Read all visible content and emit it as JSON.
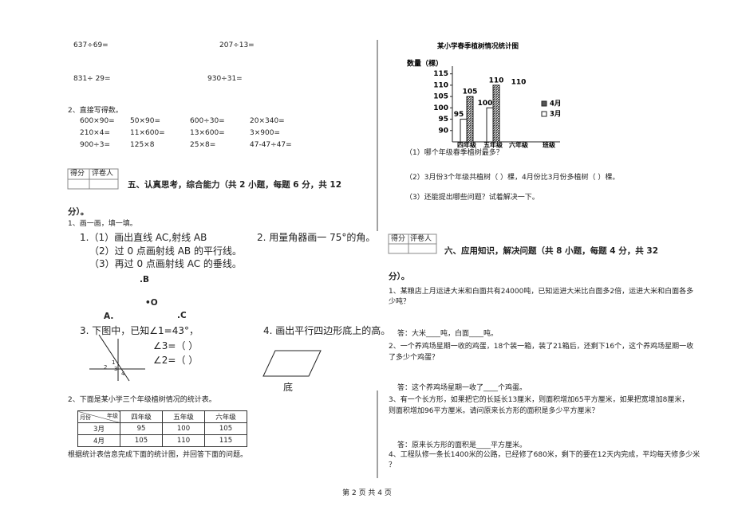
{
  "left": {
    "calc": [
      [
        "637÷69=",
        "207÷13="
      ],
      [
        "831÷ 29=",
        "930÷31="
      ]
    ],
    "q2": {
      "title": "2、直接写得数。",
      "rows": [
        [
          "600×90=",
          "50×90=",
          "600÷30=",
          "20×340="
        ],
        [
          "210×4=",
          "11×600=",
          "13×600=",
          "3×900="
        ],
        [
          "900÷3=",
          "125×8",
          "25×8=",
          "47-47÷47="
        ]
      ]
    },
    "score_box": [
      "得分",
      "评卷人"
    ],
    "section5": {
      "heading": "五、认真思考，综合能力（共 2 小题，每题 6 分，共 12",
      "heading_end": "分）。"
    },
    "q1": {
      "title": "1、画一画，填一填。",
      "p1": "1.（1）画出直线 AC,射线 AB",
      "p1b": "（2）过 0 点画射线 AB 的平行线。",
      "p1c": "（3）再过 0 点画射线 AC 的垂线。",
      "p2": "2. 用量角器画一 75°的角。",
      "points": [
        ".B",
        "•O",
        "A.",
        ".C"
      ],
      "p3": "3. 下图中，已知∠1=43°，",
      "angles": [
        "∠3=（    ）",
        "∠2=（    ）"
      ],
      "angle_labels": [
        "1",
        "2",
        "3",
        "4"
      ],
      "p4": "4. 画出平行四边形底上的高。",
      "base": "底"
    },
    "table": {
      "title": "2、下面是某小学三个年级植树情况的统计表。",
      "corner": [
        "年级",
        "月份"
      ],
      "columns": [
        "四年级",
        "五年级",
        "六年级"
      ],
      "rows": [
        [
          "3月",
          95,
          100,
          105
        ],
        [
          "4月",
          105,
          110,
          115
        ]
      ],
      "note": "根据统计表信息完成下面的统计图，并回答下面的问题。"
    }
  },
  "right": {
    "chart": {
      "type": "bar",
      "title": "某小学春季植树情况统计图",
      "y_label": "数量（棵）",
      "x_label": "班级",
      "categories": [
        "四年级",
        "五年级",
        "六年级"
      ],
      "series": [
        {
          "name": "4月",
          "color": "#555555",
          "values": [
            105,
            110,
            null
          ]
        },
        {
          "name": "3月",
          "color": "#ffffff",
          "values": [
            95,
            100,
            null
          ]
        }
      ],
      "annotations": [
        "110"
      ],
      "ylim": [
        85,
        117
      ],
      "yticks": [
        90,
        95,
        100,
        105,
        110,
        115
      ]
    },
    "questions": [
      "（1）哪个年级春季植树最多？",
      "（2）3月份3个年级共植树（    ）棵，4月份比3月份多植树（    ）棵。",
      "（3）还能提出哪些问题？试着解决一下。"
    ],
    "score_box": [
      "得分",
      "评卷人"
    ],
    "section6": {
      "heading": "六、应用知识，解决问题（共 8 小题，每题 4 分，共 32",
      "heading_end": "分）。"
    },
    "problems": [
      {
        "text": [
          "1、某粮店上月运进大米和白面共有24000吨，已知运进大米比白面多2倍，运进大米和白面各多",
          "少吨？"
        ],
        "answer": "答：大米____吨，白面____吨。"
      },
      {
        "text": [
          "2、一个养鸡场星期一收的鸡蛋，18个装一箱，装了21箱后，还剩下16个，这个养鸡场星期一收",
          "了多少个鸡蛋？"
        ],
        "answer": "答：这个养鸡场星期一收了____个鸡蛋。"
      },
      {
        "text": [
          "3、有一个长方形，如果把它的长延长13厘米，则面积增加65平方厘米，如果把宽增加8厘米，",
          "则面积增加96平方厘米。请问原来长方形的面积是多少平方厘米？"
        ],
        "answer": "答：原来长方形的面积是____平方厘米。"
      },
      {
        "text": [
          "4、工程队修一条长1400米的公路，已经修了680米，剩下的要在12天内完成，平均每天修多少米",
          "？"
        ]
      }
    ]
  },
  "footer": "第 2 页 共 4 页"
}
